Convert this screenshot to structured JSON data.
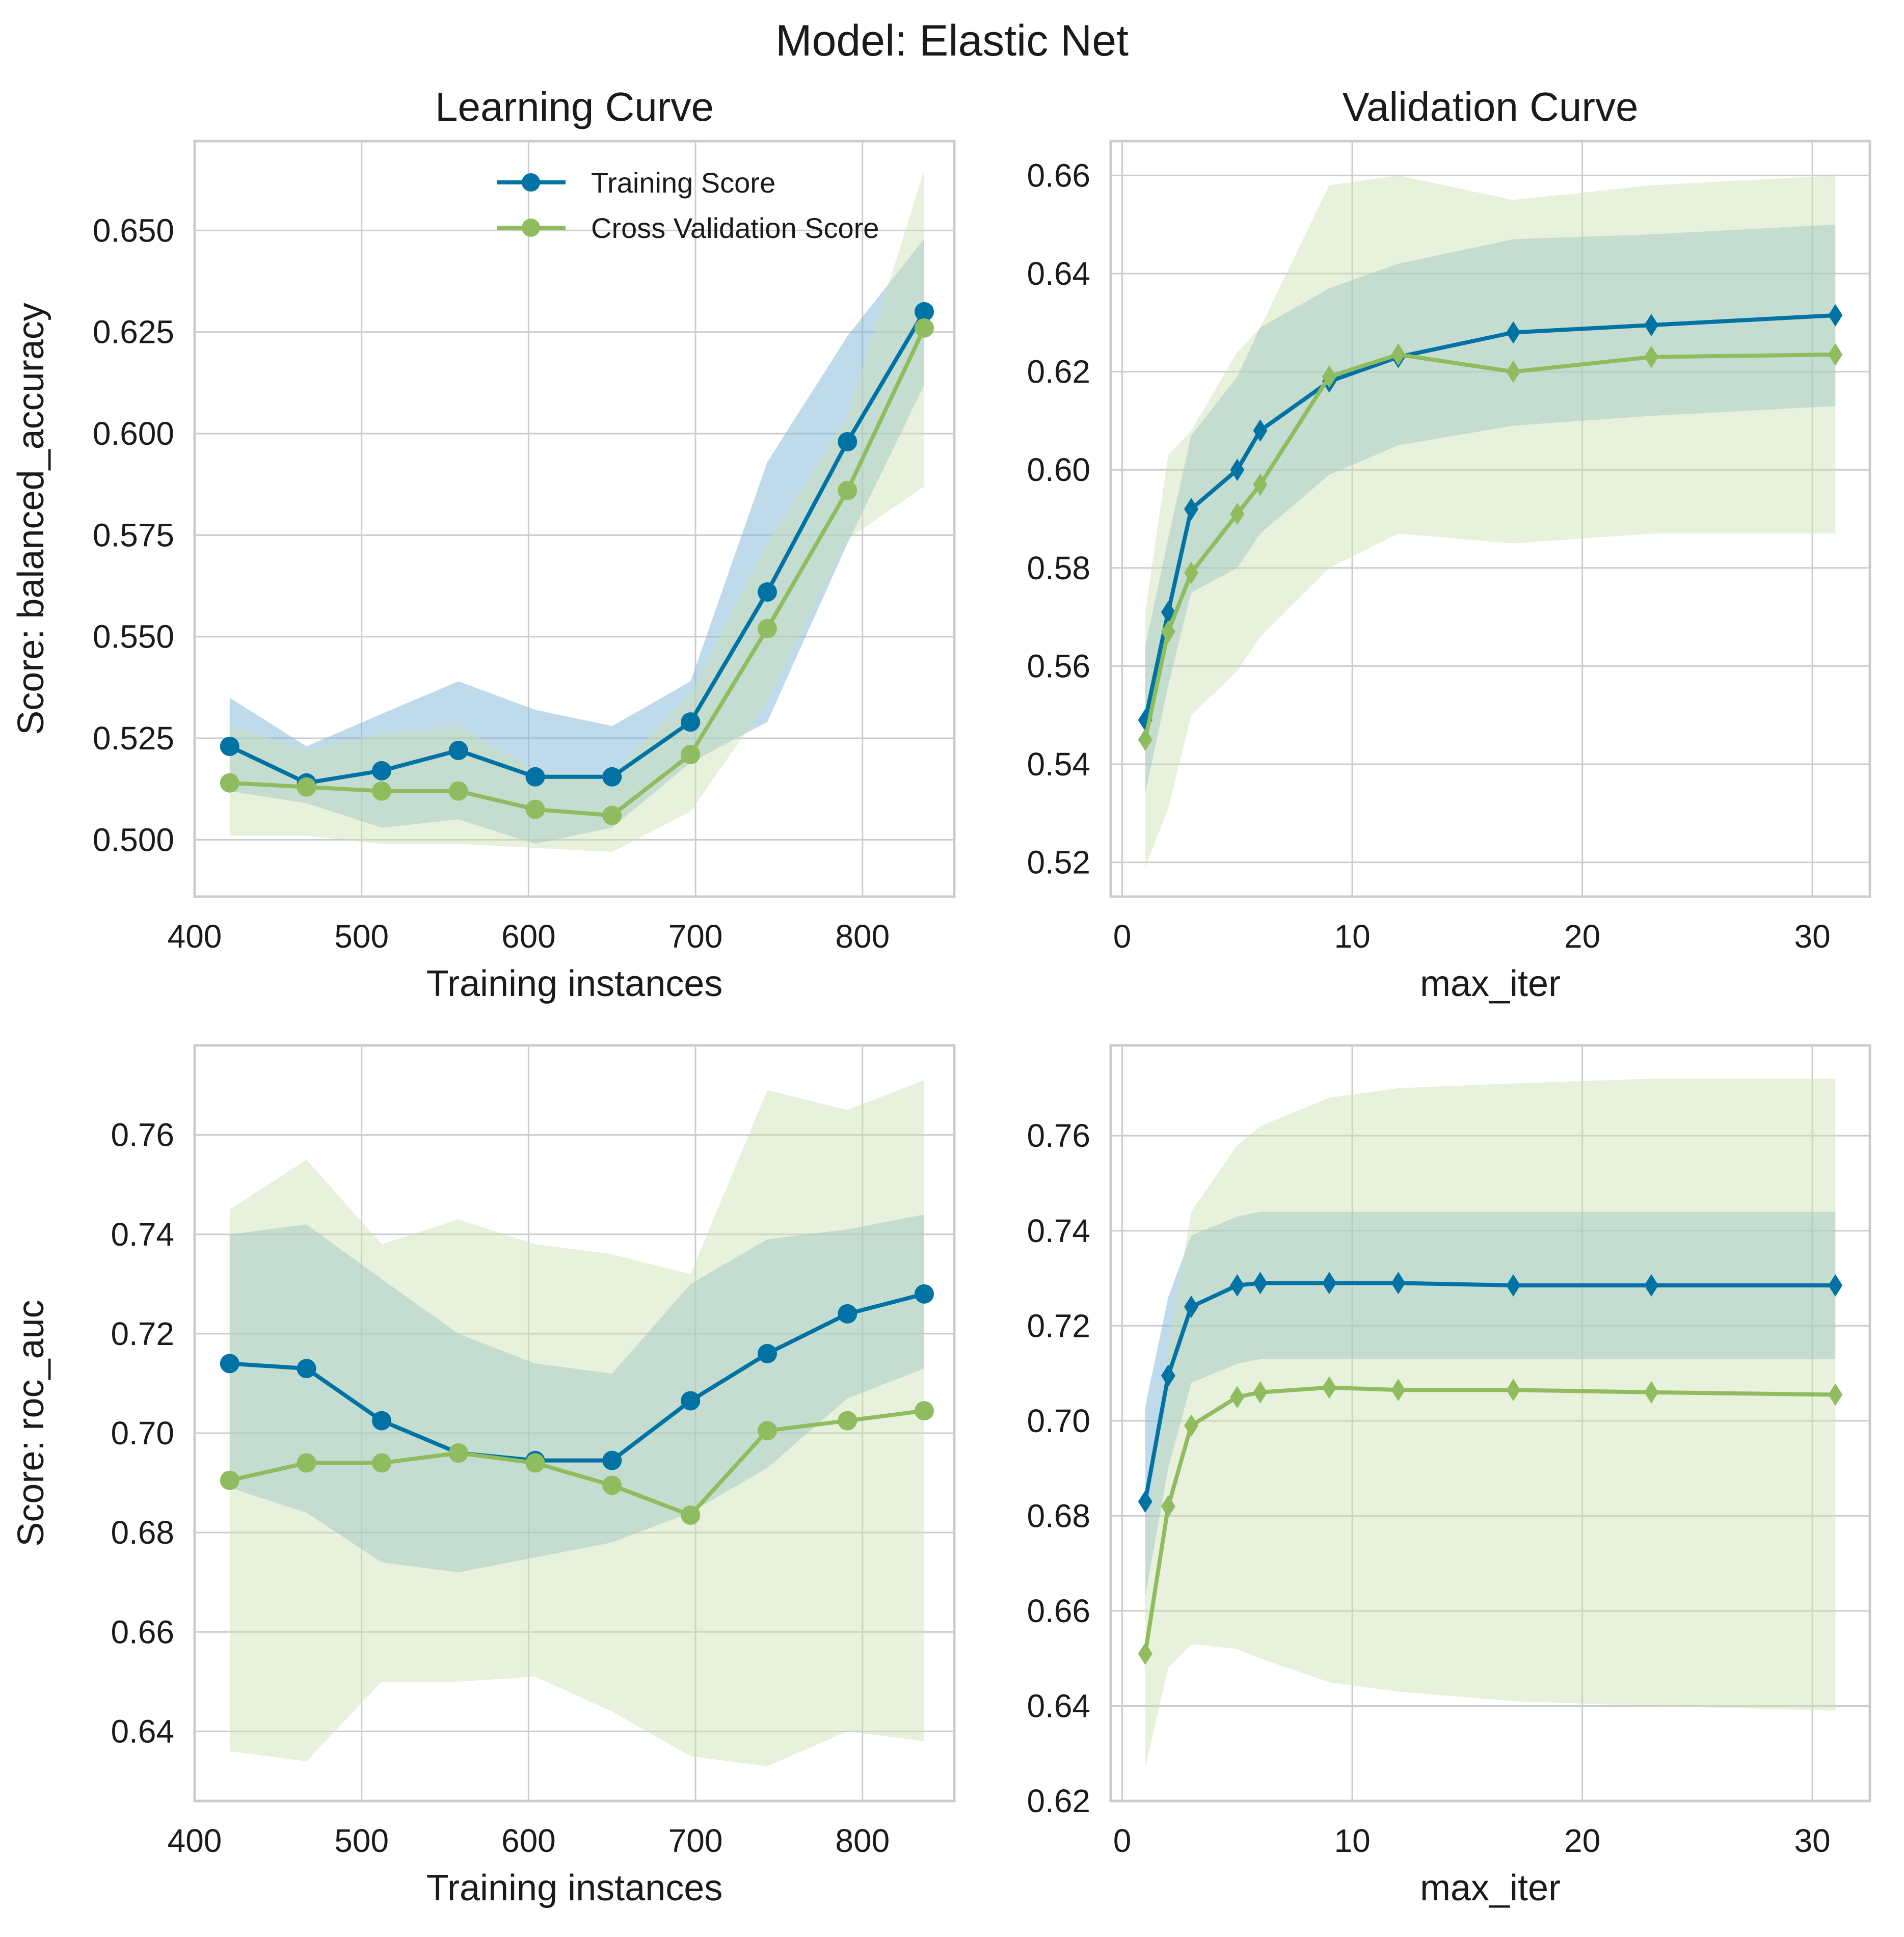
{
  "figure": {
    "title": "Model: Elastic Net"
  },
  "colors": {
    "train": "#0072a3",
    "cv": "#8fbc5f",
    "train_band": "#7fb5d5",
    "cv_band": "#cbe0b2",
    "grid": "#cccccc",
    "spine": "#cccccc"
  },
  "chart_data": [
    {
      "id": "lc_balanced_accuracy",
      "type": "line",
      "title": "Learning Curve",
      "xlabel": "Training instances",
      "ylabel": "Score: balanced_accuracy",
      "marker": "circle",
      "legend": {
        "position": "top-right",
        "entries": [
          "Training Score",
          "Cross Validation Score"
        ]
      },
      "xlim": [
        400,
        855
      ],
      "ylim": [
        0.486,
        0.672
      ],
      "xticks": [
        400,
        500,
        600,
        700,
        800
      ],
      "xtick_labels": [
        "400",
        "500",
        "600",
        "700",
        "800"
      ],
      "yticks": [
        0.5,
        0.525,
        0.55,
        0.575,
        0.6,
        0.625,
        0.65
      ],
      "ytick_labels": [
        "0.500",
        "0.525",
        "0.550",
        "0.575",
        "0.600",
        "0.625",
        "0.650"
      ],
      "x": [
        421,
        467,
        512,
        558,
        604,
        650,
        697,
        743,
        791,
        837
      ],
      "series": [
        {
          "name": "Training Score",
          "values": [
            0.523,
            0.514,
            0.517,
            0.522,
            0.5155,
            0.5155,
            0.529,
            0.561,
            0.598,
            0.63
          ],
          "band_lower": [
            0.512,
            0.509,
            0.503,
            0.505,
            0.499,
            0.503,
            0.519,
            0.529,
            0.573,
            0.612
          ],
          "band_upper": [
            0.535,
            0.523,
            0.531,
            0.539,
            0.532,
            0.528,
            0.539,
            0.593,
            0.624,
            0.648
          ]
        },
        {
          "name": "Cross Validation Score",
          "values": [
            0.514,
            0.513,
            0.512,
            0.512,
            0.5075,
            0.506,
            0.521,
            0.552,
            0.586,
            0.626
          ],
          "band_lower": [
            0.501,
            0.501,
            0.499,
            0.499,
            0.498,
            0.497,
            0.507,
            0.534,
            0.574,
            0.587
          ],
          "band_upper": [
            0.528,
            0.522,
            0.526,
            0.528,
            0.517,
            0.516,
            0.536,
            0.573,
            0.604,
            0.665
          ]
        }
      ]
    },
    {
      "id": "vc_balanced_accuracy",
      "type": "line",
      "title": "Validation Curve",
      "xlabel": "max_iter",
      "ylabel": "",
      "marker": "diamond",
      "xlim": [
        -0.5,
        32.5
      ],
      "ylim": [
        0.513,
        0.667
      ],
      "xticks": [
        0,
        10,
        20,
        30
      ],
      "xtick_labels": [
        "0",
        "10",
        "20",
        "30"
      ],
      "yticks": [
        0.52,
        0.54,
        0.56,
        0.58,
        0.6,
        0.62,
        0.64,
        0.66
      ],
      "ytick_labels": [
        "0.52",
        "0.54",
        "0.56",
        "0.58",
        "0.60",
        "0.62",
        "0.64",
        "0.66"
      ],
      "x": [
        1,
        2,
        3,
        5,
        6,
        9,
        12,
        17,
        23,
        31
      ],
      "series": [
        {
          "name": "Training Score",
          "values": [
            0.549,
            0.571,
            0.592,
            0.6,
            0.608,
            0.618,
            0.623,
            0.628,
            0.6295,
            0.6315
          ],
          "band_lower": [
            0.534,
            0.556,
            0.575,
            0.58,
            0.587,
            0.599,
            0.605,
            0.609,
            0.611,
            0.613
          ],
          "band_upper": [
            0.564,
            0.586,
            0.607,
            0.619,
            0.629,
            0.637,
            0.642,
            0.647,
            0.648,
            0.65
          ]
        },
        {
          "name": "Cross Validation Score",
          "values": [
            0.545,
            0.567,
            0.579,
            0.591,
            0.597,
            0.619,
            0.6235,
            0.62,
            0.623,
            0.6235
          ],
          "band_lower": [
            0.519,
            0.531,
            0.55,
            0.559,
            0.566,
            0.58,
            0.587,
            0.585,
            0.587,
            0.587
          ],
          "band_upper": [
            0.571,
            0.603,
            0.608,
            0.624,
            0.629,
            0.658,
            0.66,
            0.655,
            0.658,
            0.66
          ]
        }
      ]
    },
    {
      "id": "lc_roc_auc",
      "type": "line",
      "title": "",
      "xlabel": "Training instances",
      "ylabel": "Score: roc_auc",
      "marker": "circle",
      "xlim": [
        400,
        855
      ],
      "ylim": [
        0.626,
        0.778
      ],
      "xticks": [
        400,
        500,
        600,
        700,
        800
      ],
      "xtick_labels": [
        "400",
        "500",
        "600",
        "700",
        "800"
      ],
      "yticks": [
        0.64,
        0.66,
        0.68,
        0.7,
        0.72,
        0.74,
        0.76
      ],
      "ytick_labels": [
        "0.64",
        "0.66",
        "0.68",
        "0.70",
        "0.72",
        "0.74",
        "0.76"
      ],
      "x": [
        421,
        467,
        512,
        558,
        604,
        650,
        697,
        743,
        791,
        837
      ],
      "series": [
        {
          "name": "Training Score",
          "values": [
            0.714,
            0.713,
            0.7025,
            0.696,
            0.6945,
            0.6945,
            0.7065,
            0.716,
            0.724,
            0.728
          ],
          "band_lower": [
            0.689,
            0.684,
            0.674,
            0.672,
            0.675,
            0.678,
            0.684,
            0.693,
            0.707,
            0.713
          ],
          "band_upper": [
            0.74,
            0.742,
            0.731,
            0.72,
            0.714,
            0.712,
            0.73,
            0.739,
            0.741,
            0.744
          ]
        },
        {
          "name": "Cross Validation Score",
          "values": [
            0.6905,
            0.694,
            0.694,
            0.696,
            0.694,
            0.6895,
            0.6835,
            0.7005,
            0.7025,
            0.7045
          ],
          "band_lower": [
            0.636,
            0.634,
            0.65,
            0.65,
            0.651,
            0.644,
            0.635,
            0.633,
            0.64,
            0.638
          ],
          "band_upper": [
            0.745,
            0.755,
            0.738,
            0.743,
            0.738,
            0.736,
            0.732,
            0.769,
            0.765,
            0.771
          ]
        }
      ]
    },
    {
      "id": "vc_roc_auc",
      "type": "line",
      "title": "",
      "xlabel": "max_iter",
      "ylabel": "",
      "marker": "diamond",
      "xlim": [
        -0.5,
        32.5
      ],
      "ylim": [
        0.62,
        0.779
      ],
      "xticks": [
        0,
        10,
        20,
        30
      ],
      "xtick_labels": [
        "0",
        "10",
        "20",
        "30"
      ],
      "yticks": [
        0.62,
        0.64,
        0.66,
        0.68,
        0.7,
        0.72,
        0.74,
        0.76
      ],
      "ytick_labels": [
        "0.62",
        "0.64",
        "0.66",
        "0.68",
        "0.70",
        "0.72",
        "0.74",
        "0.76"
      ],
      "x": [
        1,
        2,
        3,
        5,
        6,
        9,
        12,
        17,
        23,
        31
      ],
      "series": [
        {
          "name": "Training Score",
          "values": [
            0.683,
            0.7095,
            0.724,
            0.7285,
            0.729,
            0.729,
            0.729,
            0.7285,
            0.7285,
            0.7285
          ],
          "band_lower": [
            0.663,
            0.69,
            0.708,
            0.712,
            0.713,
            0.713,
            0.713,
            0.713,
            0.713,
            0.713
          ],
          "band_upper": [
            0.703,
            0.726,
            0.739,
            0.743,
            0.744,
            0.744,
            0.744,
            0.744,
            0.744,
            0.744
          ]
        },
        {
          "name": "Cross Validation Score",
          "values": [
            0.651,
            0.682,
            0.699,
            0.705,
            0.706,
            0.707,
            0.7065,
            0.7065,
            0.706,
            0.7055
          ],
          "band_lower": [
            0.627,
            0.648,
            0.653,
            0.652,
            0.65,
            0.645,
            0.643,
            0.641,
            0.64,
            0.639
          ],
          "band_upper": [
            0.675,
            0.716,
            0.744,
            0.758,
            0.762,
            0.768,
            0.77,
            0.771,
            0.772,
            0.772
          ]
        }
      ]
    }
  ]
}
